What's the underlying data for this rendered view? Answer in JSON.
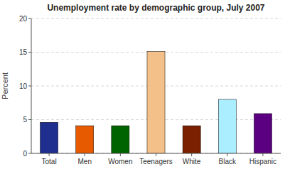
{
  "chart_data": {
    "type": "bar",
    "title": "Unemployment rate by demographic group, July 2007",
    "categories": [
      "Total",
      "Men",
      "Women",
      "Teenagers",
      "White",
      "Black",
      "Hispanic"
    ],
    "values": [
      4.6,
      4.1,
      4.1,
      15.1,
      4.1,
      8.0,
      5.9
    ],
    "colors": [
      "#1F2F8F",
      "#E85A00",
      "#006400",
      "#F4C08A",
      "#7B2000",
      "#AAEEFF",
      "#5B0080"
    ],
    "ylabel": "Percent",
    "ylim": [
      0,
      20
    ],
    "yticks": [
      0,
      5,
      10,
      15,
      20
    ],
    "grid": true
  }
}
